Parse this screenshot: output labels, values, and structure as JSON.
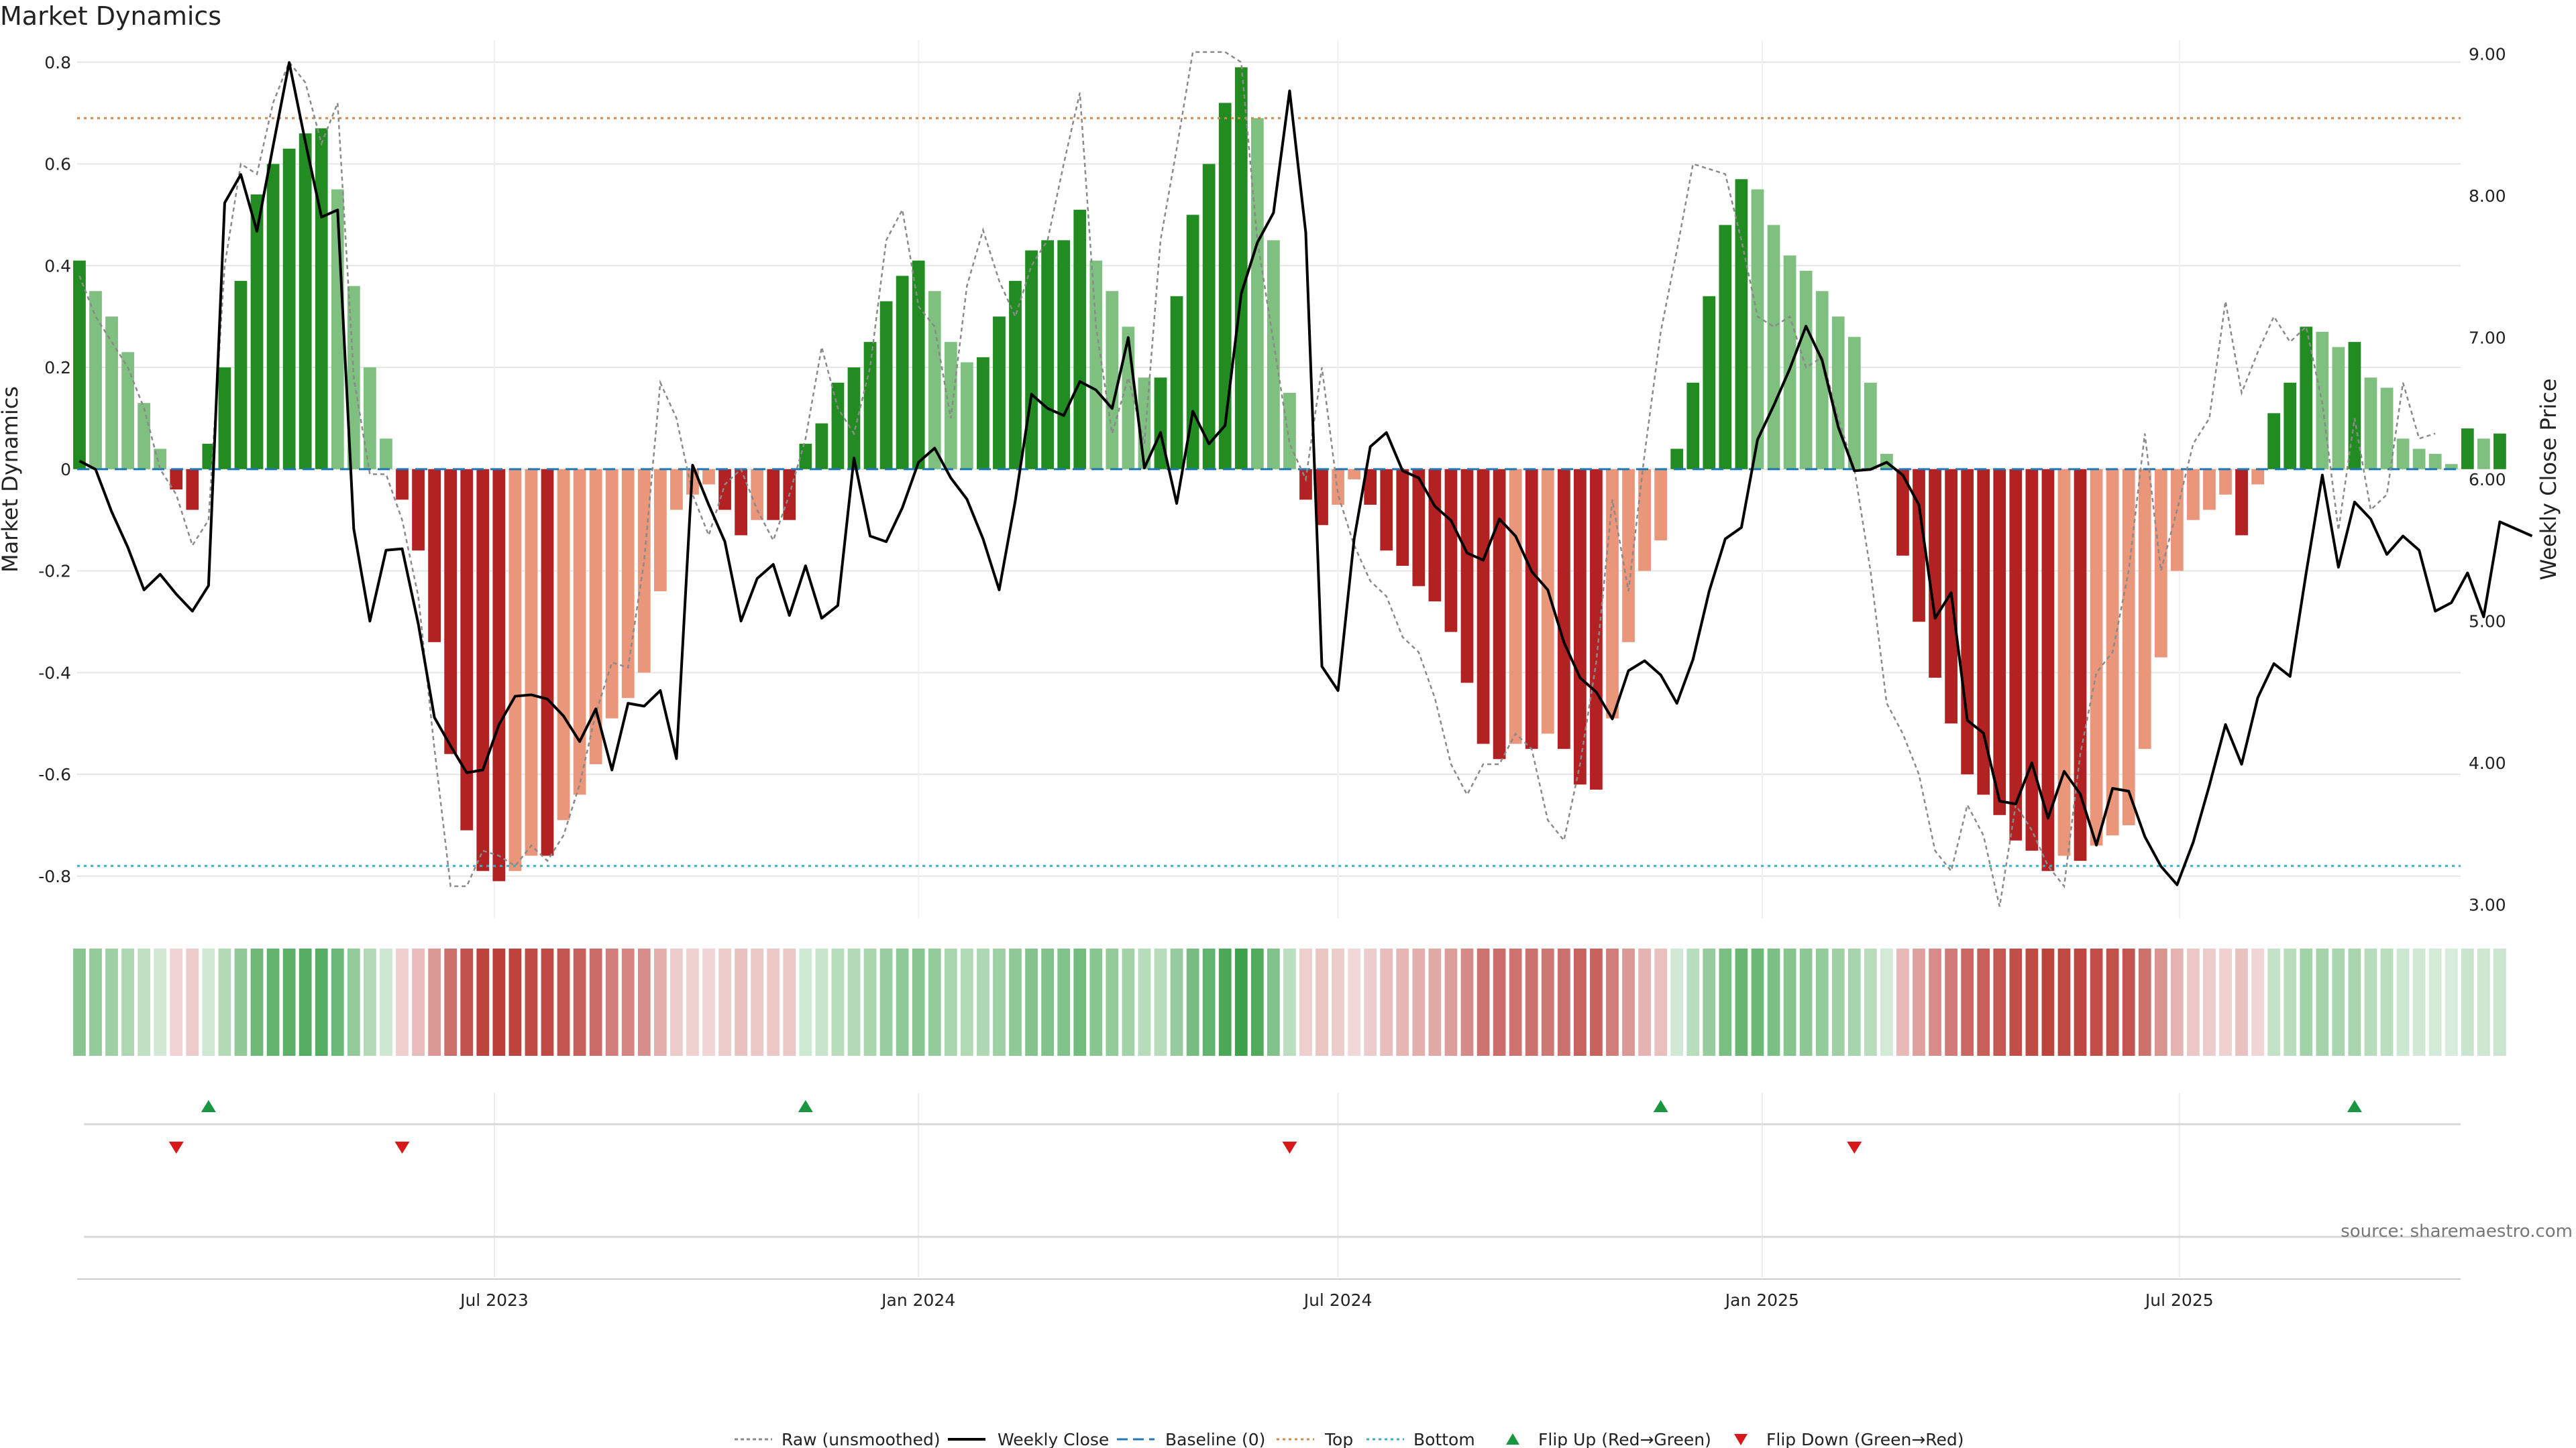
{
  "title": "Market Dynamics",
  "source": "source: sharemaestro.com",
  "colors": {
    "strong_up": "#228b22",
    "weak_up": "#7fbf7f",
    "strong_down": "#b22222",
    "weak_down": "#e9967a",
    "raw": "#8a8a8a",
    "close": "#000000",
    "baseline": "#1f77b4",
    "top": "#d08a4c",
    "bottom": "#3ab0c8",
    "flip_up": "#1a9641",
    "flip_down": "#d7191c",
    "grid": "#e6e6e6"
  },
  "chart_data": {
    "type": "bar",
    "title": "Market Dynamics",
    "ylabel": "Market Dynamics",
    "y2label": "Weekly Close Price",
    "ylim": [
      -0.87,
      0.83
    ],
    "y2lim": [
      2.95,
      9.05
    ],
    "yticks": [
      "0.8",
      "0.6",
      "0.4",
      "0.2",
      "0",
      "-0.2",
      "-0.4",
      "-0.6",
      "-0.8"
    ],
    "y2ticks": [
      "9.00",
      "8.00",
      "7.00",
      "6.00",
      "5.00",
      "4.00",
      "3.00"
    ],
    "xlim": [
      "2023-01-01",
      "2025-10-31"
    ],
    "xticks": [
      {
        "date": "2023-07-01",
        "label": "Jul 2023"
      },
      {
        "date": "2024-01-01",
        "label": "Jan 2024"
      },
      {
        "date": "2024-07-01",
        "label": "Jul 2024"
      },
      {
        "date": "2025-01-01",
        "label": "Jan 2025"
      },
      {
        "date": "2025-07-01",
        "label": "Jul 2025"
      }
    ],
    "top_line": 0.69,
    "bottom_line": -0.78,
    "baseline": 0,
    "first_week": "2023-01-02",
    "week_step_days": 7,
    "momentum": [
      0.41,
      0.35,
      0.3,
      0.23,
      0.13,
      0.04,
      -0.04,
      -0.08,
      0.05,
      0.2,
      0.37,
      0.54,
      0.6,
      0.63,
      0.66,
      0.67,
      0.55,
      0.36,
      0.2,
      0.06,
      -0.06,
      -0.16,
      -0.34,
      -0.56,
      -0.71,
      -0.79,
      -0.81,
      -0.79,
      -0.76,
      -0.76,
      -0.69,
      -0.64,
      -0.58,
      -0.49,
      -0.45,
      -0.4,
      -0.24,
      -0.08,
      -0.05,
      -0.03,
      -0.08,
      -0.13,
      -0.1,
      -0.1,
      -0.1,
      0.05,
      0.09,
      0.17,
      0.2,
      0.25,
      0.33,
      0.38,
      0.41,
      0.35,
      0.25,
      0.21,
      0.22,
      0.3,
      0.37,
      0.43,
      0.45,
      0.45,
      0.51,
      0.41,
      0.35,
      0.28,
      0.18,
      0.18,
      0.34,
      0.5,
      0.6,
      0.72,
      0.79,
      0.69,
      0.45,
      0.15,
      -0.06,
      -0.11,
      -0.07,
      -0.02,
      -0.07,
      -0.16,
      -0.19,
      -0.23,
      -0.26,
      -0.32,
      -0.42,
      -0.54,
      -0.57,
      -0.54,
      -0.55,
      -0.52,
      -0.55,
      -0.62,
      -0.63,
      -0.49,
      -0.34,
      -0.2,
      -0.14,
      0.04,
      0.17,
      0.34,
      0.48,
      0.57,
      0.55,
      0.48,
      0.42,
      0.39,
      0.35,
      0.3,
      0.26,
      0.17,
      0.03,
      -0.17,
      -0.3,
      -0.41,
      -0.5,
      -0.6,
      -0.64,
      -0.68,
      -0.73,
      -0.75,
      -0.79,
      -0.76,
      -0.77,
      -0.74,
      -0.72,
      -0.7,
      -0.55,
      -0.37,
      -0.2,
      -0.1,
      -0.08,
      -0.05,
      -0.13,
      -0.03,
      0.11,
      0.17,
      0.28,
      0.27,
      0.24,
      0.25,
      0.18,
      0.16,
      0.06,
      0.04,
      0.03,
      0.01,
      0.08,
      0.06,
      0.07
    ],
    "series": [
      {
        "name": "Raw (unsmoothed)",
        "style": "dotted",
        "axis": "left",
        "values": [
          0.38,
          0.3,
          0.25,
          0.2,
          0.12,
          0.0,
          -0.05,
          -0.15,
          -0.1,
          0.4,
          0.6,
          0.58,
          0.72,
          0.8,
          0.76,
          0.64,
          0.72,
          0.18,
          -0.01,
          -0.01,
          -0.1,
          -0.25,
          -0.55,
          -0.82,
          -0.82,
          -0.75,
          -0.76,
          -0.78,
          -0.74,
          -0.77,
          -0.72,
          -0.62,
          -0.48,
          -0.38,
          -0.39,
          -0.18,
          0.17,
          0.1,
          -0.05,
          -0.13,
          -0.03,
          0.0,
          -0.08,
          -0.14,
          -0.05,
          0.06,
          0.24,
          0.12,
          0.07,
          0.2,
          0.45,
          0.51,
          0.32,
          0.28,
          0.1,
          0.36,
          0.47,
          0.37,
          0.3,
          0.4,
          0.45,
          0.6,
          0.74,
          0.28,
          0.07,
          0.18,
          0.05,
          0.45,
          0.63,
          0.82,
          0.82,
          0.82,
          0.8,
          0.45,
          0.25,
          0.05,
          -0.02,
          0.2,
          -0.05,
          -0.15,
          -0.22,
          -0.25,
          -0.33,
          -0.36,
          -0.45,
          -0.58,
          -0.64,
          -0.58,
          -0.58,
          -0.52,
          -0.55,
          -0.69,
          -0.73,
          -0.58,
          -0.38,
          -0.06,
          -0.24,
          0.03,
          0.27,
          0.43,
          0.6,
          0.59,
          0.58,
          0.45,
          0.3,
          0.28,
          0.3,
          0.2,
          0.22,
          0.1,
          0.0,
          -0.2,
          -0.46,
          -0.52,
          -0.6,
          -0.75,
          -0.79,
          -0.66,
          -0.72,
          -0.86,
          -0.66,
          -0.71,
          -0.78,
          -0.82,
          -0.56,
          -0.4,
          -0.36,
          -0.2,
          0.07,
          -0.2,
          -0.08,
          0.05,
          0.1,
          0.33,
          0.15,
          0.23,
          0.3,
          0.25,
          0.28,
          0.13,
          -0.12,
          0.1,
          -0.08,
          -0.05,
          0.17,
          0.06,
          0.07
        ]
      },
      {
        "name": "Weekly Close",
        "style": "solid",
        "axis": "right",
        "values": [
          6.13,
          6.07,
          5.77,
          5.52,
          5.22,
          5.33,
          5.19,
          5.07,
          5.25,
          7.95,
          8.15,
          7.75,
          8.35,
          8.94,
          8.38,
          7.85,
          7.9,
          5.65,
          5.0,
          5.5,
          5.51,
          4.98,
          4.32,
          4.12,
          3.93,
          3.95,
          4.27,
          4.47,
          4.48,
          4.45,
          4.33,
          4.15,
          4.38,
          3.95,
          4.42,
          4.4,
          4.51,
          4.03,
          6.1,
          5.82,
          5.56,
          5.0,
          5.3,
          5.4,
          5.04,
          5.39,
          5.02,
          5.11,
          6.15,
          5.6,
          5.56,
          5.8,
          6.12,
          6.22,
          6.01,
          5.86,
          5.58,
          5.22,
          5.85,
          6.6,
          6.5,
          6.45,
          6.69,
          6.63,
          6.5,
          7.0,
          6.08,
          6.33,
          5.83,
          6.48,
          6.25,
          6.38,
          7.31,
          7.67,
          7.88,
          8.74,
          7.74,
          4.68,
          4.51,
          5.58,
          6.23,
          6.33,
          6.06,
          6.01,
          5.81,
          5.71,
          5.48,
          5.43,
          5.72,
          5.6,
          5.35,
          5.22,
          4.85,
          4.6,
          4.5,
          4.31,
          4.65,
          4.72,
          4.62,
          4.42,
          4.73,
          5.21,
          5.58,
          5.66,
          6.28,
          6.52,
          6.78,
          7.08,
          6.84,
          6.37,
          6.06,
          6.07,
          6.12,
          6.03,
          5.82,
          5.02,
          5.2,
          4.3,
          4.21,
          3.73,
          3.71,
          4.0,
          3.61,
          3.94,
          3.78,
          3.42,
          3.82,
          3.8,
          3.48,
          3.27,
          3.14,
          3.44,
          3.84,
          4.27,
          3.99,
          4.46,
          4.7,
          4.61,
          5.34,
          6.03,
          5.38,
          5.84,
          5.72,
          5.47,
          5.6,
          5.5,
          5.07,
          5.13,
          5.34,
          5.03,
          5.7,
          5.65,
          5.6
        ]
      },
      {
        "name": "Baseline (0)",
        "style": "dashed",
        "axis": "left"
      },
      {
        "name": "Top",
        "style": "dotted",
        "axis": "left"
      },
      {
        "name": "Bottom",
        "style": "dotted",
        "axis": "left"
      },
      {
        "name": "Flip Up (Red→Green)",
        "style": "marker-up"
      },
      {
        "name": "Flip Down (Green→Red)",
        "style": "marker-down"
      }
    ],
    "flip_up_weeks": [
      8,
      45,
      98,
      141
    ],
    "flip_down_weeks": [
      6,
      20,
      75,
      110
    ],
    "legend": [
      "Raw (unsmoothed)",
      "Weekly Close",
      "Baseline (0)",
      "Top",
      "Bottom",
      "Flip Up (Red→Green)",
      "Flip Down (Green→Red)"
    ],
    "legend_position": "bottom-center",
    "grid": true
  }
}
